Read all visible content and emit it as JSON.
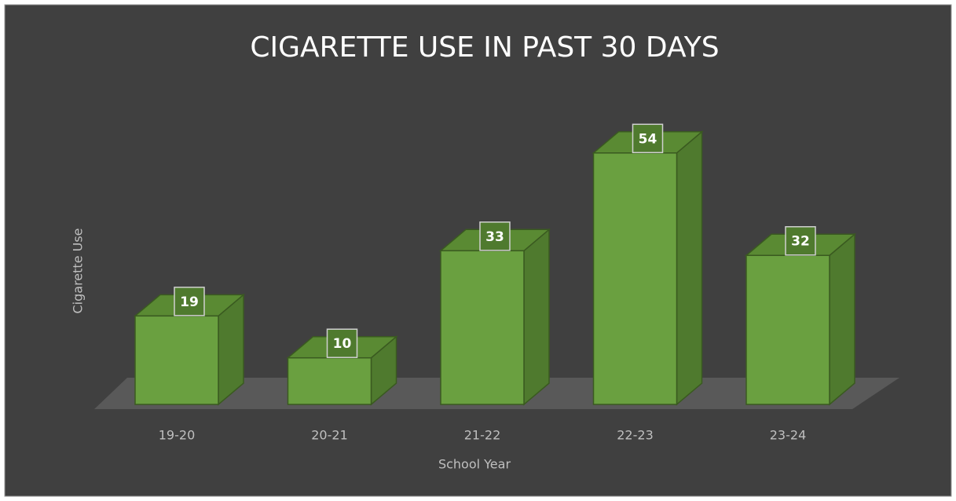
{
  "chart_data": {
    "type": "bar3d",
    "title": "CIGARETTE USE IN PAST 30 DAYS",
    "x_label": "School Year",
    "y_label": "Cigarette Use",
    "categories": [
      "19-20",
      "20-21",
      "21-22",
      "22-23",
      "23-24"
    ],
    "values": [
      19,
      10,
      33,
      54,
      32
    ],
    "color": "#6aa040"
  }
}
